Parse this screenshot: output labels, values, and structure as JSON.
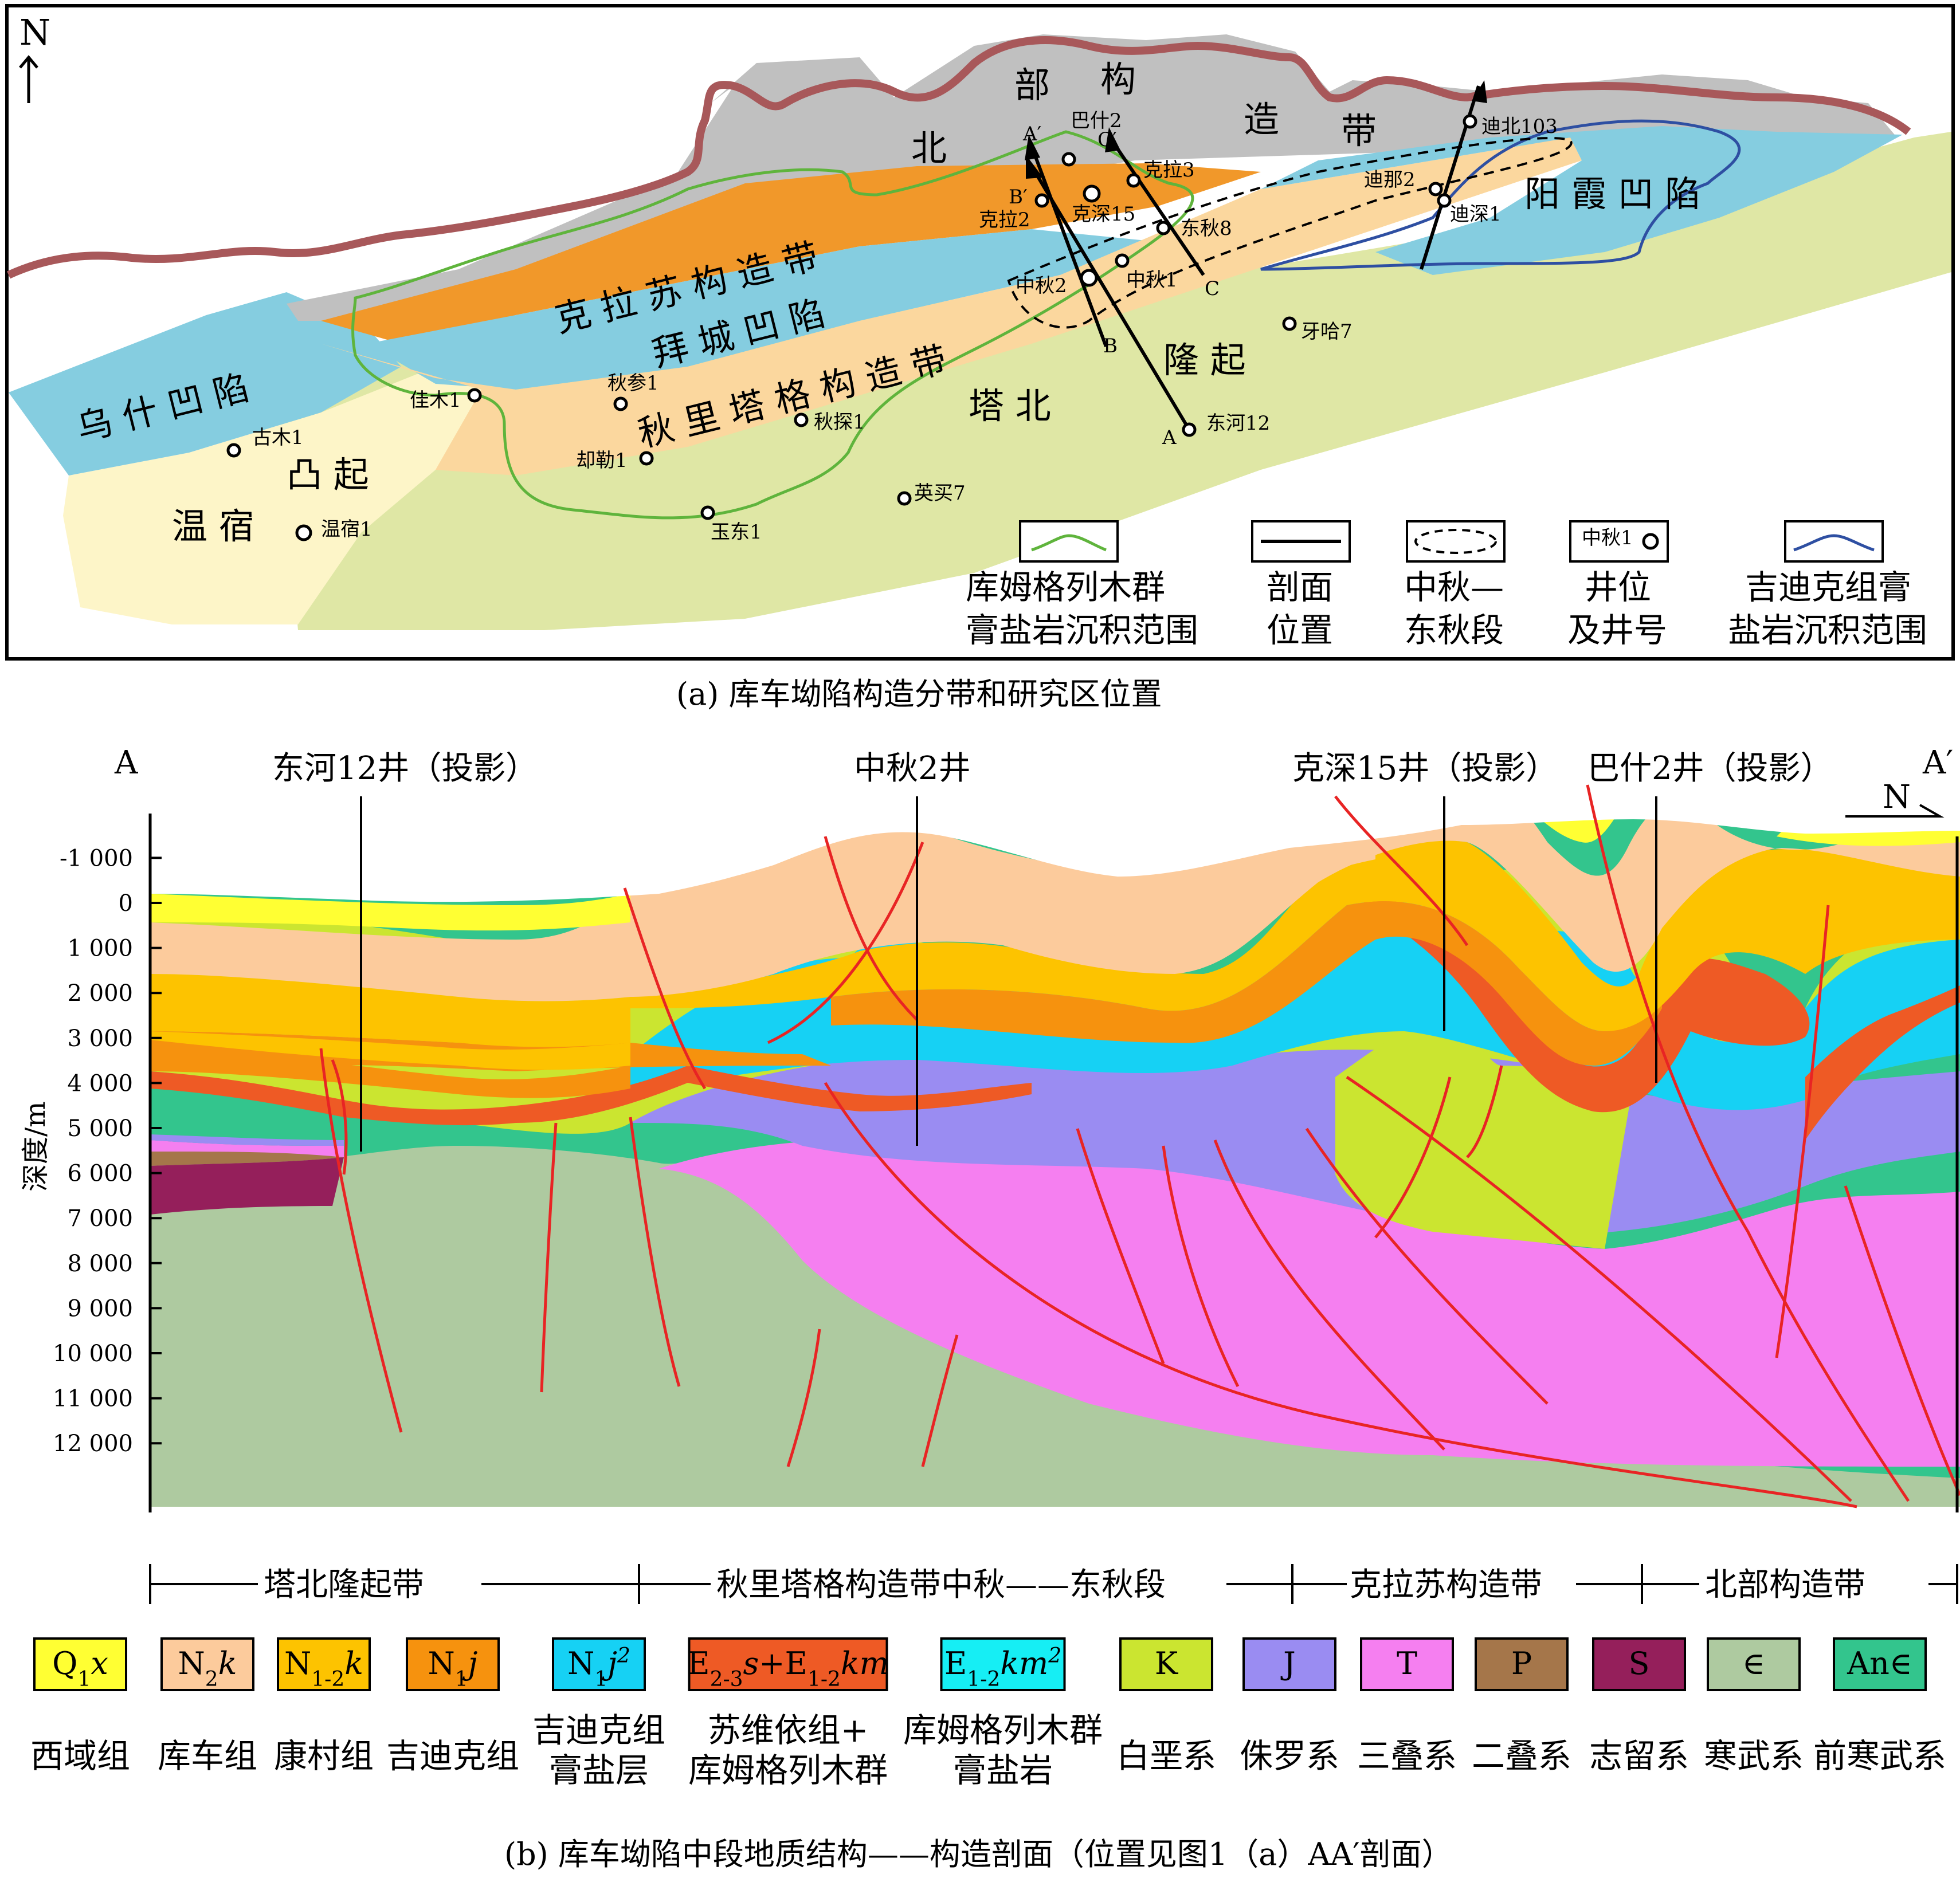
{
  "map": {
    "north_label": "N",
    "zones": {
      "beibu1": "北",
      "beibu2": "部",
      "beibu3": "构",
      "beibu4": "造",
      "beibu5": "带",
      "kelasu": "克 拉 苏 构 造 带",
      "baicheng": "拜 城 凹 陷",
      "qiulitage": "秋 里 塔 格 构 造 带",
      "tabei1": "塔 北",
      "tabei2": "隆 起",
      "wushi": "乌 什 凹 陷",
      "wensu1": "温 宿",
      "wensu2": "凸 起",
      "yangxia": "阳 霞 凹 陷"
    },
    "wells": {
      "bashi2": "巴什2",
      "kela3": "克拉3",
      "kela2": "克拉2",
      "keshen15": "克深15",
      "dongqiu8": "东秋8",
      "zhongqiu2": "中秋2",
      "zhongqiu1": "中秋1",
      "dina2": "迪那2",
      "dishen1": "迪深1",
      "dibei103": "迪北103",
      "yaha7": "牙哈7",
      "donghe12": "东河12",
      "jiamu1": "佳木1",
      "qiucan1": "秋参1",
      "qiutan1": "秋探1",
      "quele1": "却勒1",
      "gumu1": "古木1",
      "wensu1w": "温宿1",
      "yudong1": "玉东1",
      "yingmai7": "英买7"
    },
    "section_labels": {
      "A": "A",
      "A2": "A′",
      "B": "B",
      "B2": "B′",
      "C": "C",
      "C2": "C′"
    },
    "legend": {
      "kumu1": "库姆格列木群",
      "kumu2": "膏盐岩沉积范围",
      "sec1": "剖面",
      "sec2": "位置",
      "zq1": "中秋—",
      "zq2": "东秋段",
      "well1": "井位",
      "well2": "及井号",
      "well_sample": "中秋1",
      "jidi1": "吉迪克组膏",
      "jidi2": "盐岩沉积范围"
    },
    "colors": {
      "north_belt": "#c0c0c0",
      "kelasu": "#f1982a",
      "depression": "#85cde0",
      "qiulitage": "#fbd79e",
      "tabei": "#dfe7a5",
      "wensu": "#fdf5c8",
      "boundary": "#a8585a",
      "kumu_line": "#5fb43c",
      "jidike_line": "#2e4fa2"
    }
  },
  "caption_a": "(a) 库车坳陷构造分带和研究区位置",
  "section": {
    "left_end": "A",
    "right_end": "A′",
    "wells": {
      "donghe12": "东河12井（投影）",
      "zhongqiu2": "中秋2井",
      "keshen15": "克深15井（投影）",
      "bashi2": "巴什2井（投影）"
    },
    "north": "N",
    "axis_label": "深度/m",
    "depth_ticks": [
      "-1 000",
      "0",
      "1 000",
      "2 000",
      "3 000",
      "4 000",
      "5 000",
      "6 000",
      "7 000",
      "8 000",
      "9 000",
      "10 000",
      "11 000",
      "12 000"
    ],
    "belts": {
      "tabei": "塔北隆起带",
      "qiuli": "秋里塔格构造带中秋——东秋段",
      "kelasu": "克拉苏构造带",
      "beibu": "北部构造带"
    },
    "colors": {
      "Q": "#ffff33",
      "N2k": "#fccb9c",
      "N12k": "#fdc300",
      "N1j": "#f6920e",
      "salt": "#16d1f4",
      "E": "#ee5a25",
      "K": "#cbe530",
      "J": "#9a8cf2",
      "T": "#f57ff0",
      "P": "#a5764a",
      "S": "#951f5b",
      "C": "#aecaa0",
      "An": "#33c58d",
      "fault": "#e82424"
    }
  },
  "strata_legend": [
    {
      "sym": "Q1x",
      "name": "西域组",
      "color": "#ffff33"
    },
    {
      "sym": "N2k",
      "name": "库车组",
      "color": "#fccb9c"
    },
    {
      "sym": "N1-2k",
      "name": "康村组",
      "color": "#fdc300"
    },
    {
      "sym": "N1j",
      "name": "吉迪克组",
      "color": "#f6920e"
    },
    {
      "sym": "N1j2",
      "name": "吉迪克组",
      "name2": "膏盐层",
      "color": "#16d1f4"
    },
    {
      "sym": "E2-3s+E1-2km",
      "name": "苏维依组+",
      "name2": "库姆格列木群",
      "color": "#ee5a25"
    },
    {
      "sym": "E1-2km2",
      "name": "库姆格列木群",
      "name2": "膏盐岩",
      "color": "#16eef4"
    },
    {
      "sym": "K",
      "name": "白垩系",
      "color": "#cbe530"
    },
    {
      "sym": "J",
      "name": "侏罗系",
      "color": "#9a8cf2"
    },
    {
      "sym": "T",
      "name": "三叠系",
      "color": "#f57ff0"
    },
    {
      "sym": "P",
      "name": "二叠系",
      "color": "#a5764a"
    },
    {
      "sym": "S",
      "name": "志留系",
      "color": "#951f5b"
    },
    {
      "sym": "∈",
      "name": "寒武系",
      "color": "#aecaa0"
    },
    {
      "sym": "An∈",
      "name": "前寒武系",
      "color": "#33c58d"
    }
  ],
  "caption_b": "(b) 库车坳陷中段地质结构——构造剖面（位置见图1（a）AA′剖面）"
}
